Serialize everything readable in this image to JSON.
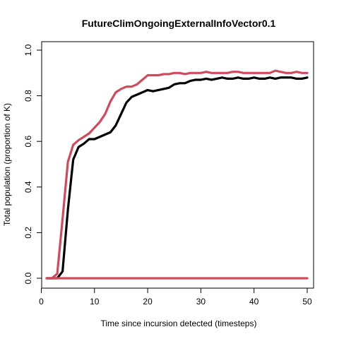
{
  "chart_data": {
    "type": "line",
    "title": "FutureClimOngoingExternalInfoVector0.1",
    "xlabel": "Time since incursion detected (timesteps)",
    "ylabel": "Total population (proportion of K)",
    "xlim": [
      1,
      50
    ],
    "ylim": [
      0,
      1
    ],
    "xticks": [
      0,
      10,
      20,
      30,
      40,
      50
    ],
    "xtick_labels": [
      "0",
      "10",
      "20",
      "30",
      "40",
      "50"
    ],
    "yticks": [
      0,
      0.2,
      0.4,
      0.6,
      0.8,
      1
    ],
    "ytick_labels": [
      "0.0",
      "0.2",
      "0.4",
      "0.6",
      "0.8",
      "1.0"
    ],
    "grid": false,
    "series": [
      {
        "color": "#000000",
        "x": [
          1,
          2,
          3,
          4,
          5,
          6,
          7,
          8,
          9,
          10,
          11,
          12,
          13,
          14,
          15,
          16,
          17,
          18,
          19,
          20,
          21,
          22,
          23,
          24,
          25,
          26,
          27,
          28,
          29,
          30,
          31,
          32,
          33,
          34,
          35,
          36,
          37,
          38,
          39,
          40,
          41,
          42,
          43,
          44,
          45,
          46,
          47,
          48,
          49,
          50
        ],
        "y": [
          0,
          0,
          0,
          0.03,
          0.3,
          0.52,
          0.575,
          0.59,
          0.61,
          0.61,
          0.62,
          0.63,
          0.64,
          0.67,
          0.72,
          0.77,
          0.795,
          0.805,
          0.815,
          0.825,
          0.82,
          0.825,
          0.83,
          0.835,
          0.85,
          0.855,
          0.855,
          0.865,
          0.87,
          0.87,
          0.875,
          0.87,
          0.875,
          0.88,
          0.875,
          0.875,
          0.88,
          0.875,
          0.875,
          0.88,
          0.875,
          0.875,
          0.88,
          0.875,
          0.88,
          0.88,
          0.88,
          0.875,
          0.875,
          0.88
        ]
      },
      {
        "color": "#d1495b",
        "x": [
          1,
          2,
          3,
          4,
          5,
          6,
          7,
          8,
          9,
          10,
          11,
          12,
          13,
          14,
          15,
          16,
          17,
          18,
          19,
          20,
          21,
          22,
          23,
          24,
          25,
          26,
          27,
          28,
          29,
          30,
          31,
          32,
          33,
          34,
          35,
          36,
          37,
          38,
          39,
          40,
          41,
          42,
          43,
          44,
          45,
          46,
          47,
          48,
          49,
          50
        ],
        "y": [
          0,
          0,
          0.02,
          0.26,
          0.51,
          0.585,
          0.605,
          0.62,
          0.635,
          0.66,
          0.685,
          0.72,
          0.775,
          0.815,
          0.83,
          0.84,
          0.84,
          0.85,
          0.87,
          0.89,
          0.89,
          0.89,
          0.895,
          0.895,
          0.9,
          0.9,
          0.895,
          0.9,
          0.9,
          0.9,
          0.905,
          0.9,
          0.9,
          0.9,
          0.9,
          0.905,
          0.905,
          0.9,
          0.9,
          0.9,
          0.9,
          0.9,
          0.9,
          0.91,
          0.905,
          0.9,
          0.9,
          0.905,
          0.9,
          0.9
        ]
      },
      {
        "color": "#d1495b",
        "x": [
          1,
          50
        ],
        "y": [
          0,
          0
        ]
      }
    ]
  }
}
